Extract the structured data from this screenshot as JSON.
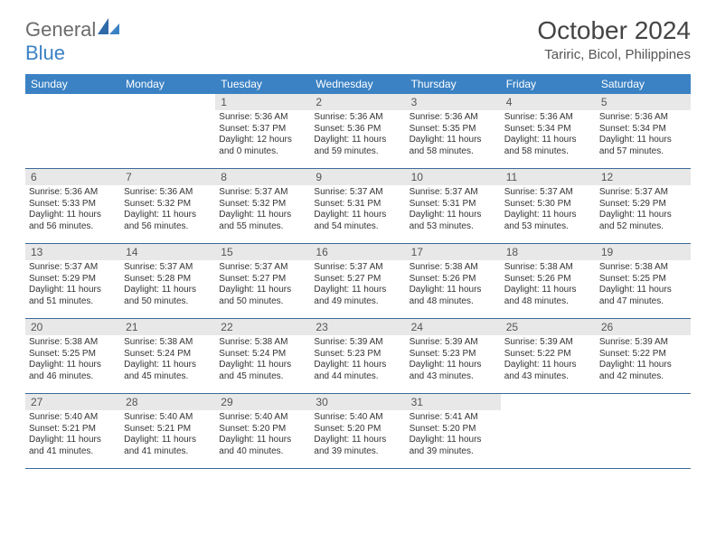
{
  "logo": {
    "textDark": "General",
    "textBlue": "Blue"
  },
  "header": {
    "title": "October 2024",
    "location": "Tariric, Bicol, Philippines"
  },
  "colors": {
    "headerBg": "#3b82c4",
    "headerText": "#ffffff",
    "dayNumBg": "#e8e8e8",
    "dayNumText": "#555555",
    "bodyText": "#333333",
    "rowBorder": "#3b6a9b",
    "logoGray": "#6b6b6b",
    "logoBlue": "#3b82c4"
  },
  "dayNames": [
    "Sunday",
    "Monday",
    "Tuesday",
    "Wednesday",
    "Thursday",
    "Friday",
    "Saturday"
  ],
  "weeks": [
    [
      {
        "empty": true
      },
      {
        "empty": true
      },
      {
        "num": "1",
        "sunrise": "Sunrise: 5:36 AM",
        "sunset": "Sunset: 5:37 PM",
        "daylight": "Daylight: 12 hours and 0 minutes."
      },
      {
        "num": "2",
        "sunrise": "Sunrise: 5:36 AM",
        "sunset": "Sunset: 5:36 PM",
        "daylight": "Daylight: 11 hours and 59 minutes."
      },
      {
        "num": "3",
        "sunrise": "Sunrise: 5:36 AM",
        "sunset": "Sunset: 5:35 PM",
        "daylight": "Daylight: 11 hours and 58 minutes."
      },
      {
        "num": "4",
        "sunrise": "Sunrise: 5:36 AM",
        "sunset": "Sunset: 5:34 PM",
        "daylight": "Daylight: 11 hours and 58 minutes."
      },
      {
        "num": "5",
        "sunrise": "Sunrise: 5:36 AM",
        "sunset": "Sunset: 5:34 PM",
        "daylight": "Daylight: 11 hours and 57 minutes."
      }
    ],
    [
      {
        "num": "6",
        "sunrise": "Sunrise: 5:36 AM",
        "sunset": "Sunset: 5:33 PM",
        "daylight": "Daylight: 11 hours and 56 minutes."
      },
      {
        "num": "7",
        "sunrise": "Sunrise: 5:36 AM",
        "sunset": "Sunset: 5:32 PM",
        "daylight": "Daylight: 11 hours and 56 minutes."
      },
      {
        "num": "8",
        "sunrise": "Sunrise: 5:37 AM",
        "sunset": "Sunset: 5:32 PM",
        "daylight": "Daylight: 11 hours and 55 minutes."
      },
      {
        "num": "9",
        "sunrise": "Sunrise: 5:37 AM",
        "sunset": "Sunset: 5:31 PM",
        "daylight": "Daylight: 11 hours and 54 minutes."
      },
      {
        "num": "10",
        "sunrise": "Sunrise: 5:37 AM",
        "sunset": "Sunset: 5:31 PM",
        "daylight": "Daylight: 11 hours and 53 minutes."
      },
      {
        "num": "11",
        "sunrise": "Sunrise: 5:37 AM",
        "sunset": "Sunset: 5:30 PM",
        "daylight": "Daylight: 11 hours and 53 minutes."
      },
      {
        "num": "12",
        "sunrise": "Sunrise: 5:37 AM",
        "sunset": "Sunset: 5:29 PM",
        "daylight": "Daylight: 11 hours and 52 minutes."
      }
    ],
    [
      {
        "num": "13",
        "sunrise": "Sunrise: 5:37 AM",
        "sunset": "Sunset: 5:29 PM",
        "daylight": "Daylight: 11 hours and 51 minutes."
      },
      {
        "num": "14",
        "sunrise": "Sunrise: 5:37 AM",
        "sunset": "Sunset: 5:28 PM",
        "daylight": "Daylight: 11 hours and 50 minutes."
      },
      {
        "num": "15",
        "sunrise": "Sunrise: 5:37 AM",
        "sunset": "Sunset: 5:27 PM",
        "daylight": "Daylight: 11 hours and 50 minutes."
      },
      {
        "num": "16",
        "sunrise": "Sunrise: 5:37 AM",
        "sunset": "Sunset: 5:27 PM",
        "daylight": "Daylight: 11 hours and 49 minutes."
      },
      {
        "num": "17",
        "sunrise": "Sunrise: 5:38 AM",
        "sunset": "Sunset: 5:26 PM",
        "daylight": "Daylight: 11 hours and 48 minutes."
      },
      {
        "num": "18",
        "sunrise": "Sunrise: 5:38 AM",
        "sunset": "Sunset: 5:26 PM",
        "daylight": "Daylight: 11 hours and 48 minutes."
      },
      {
        "num": "19",
        "sunrise": "Sunrise: 5:38 AM",
        "sunset": "Sunset: 5:25 PM",
        "daylight": "Daylight: 11 hours and 47 minutes."
      }
    ],
    [
      {
        "num": "20",
        "sunrise": "Sunrise: 5:38 AM",
        "sunset": "Sunset: 5:25 PM",
        "daylight": "Daylight: 11 hours and 46 minutes."
      },
      {
        "num": "21",
        "sunrise": "Sunrise: 5:38 AM",
        "sunset": "Sunset: 5:24 PM",
        "daylight": "Daylight: 11 hours and 45 minutes."
      },
      {
        "num": "22",
        "sunrise": "Sunrise: 5:38 AM",
        "sunset": "Sunset: 5:24 PM",
        "daylight": "Daylight: 11 hours and 45 minutes."
      },
      {
        "num": "23",
        "sunrise": "Sunrise: 5:39 AM",
        "sunset": "Sunset: 5:23 PM",
        "daylight": "Daylight: 11 hours and 44 minutes."
      },
      {
        "num": "24",
        "sunrise": "Sunrise: 5:39 AM",
        "sunset": "Sunset: 5:23 PM",
        "daylight": "Daylight: 11 hours and 43 minutes."
      },
      {
        "num": "25",
        "sunrise": "Sunrise: 5:39 AM",
        "sunset": "Sunset: 5:22 PM",
        "daylight": "Daylight: 11 hours and 43 minutes."
      },
      {
        "num": "26",
        "sunrise": "Sunrise: 5:39 AM",
        "sunset": "Sunset: 5:22 PM",
        "daylight": "Daylight: 11 hours and 42 minutes."
      }
    ],
    [
      {
        "num": "27",
        "sunrise": "Sunrise: 5:40 AM",
        "sunset": "Sunset: 5:21 PM",
        "daylight": "Daylight: 11 hours and 41 minutes."
      },
      {
        "num": "28",
        "sunrise": "Sunrise: 5:40 AM",
        "sunset": "Sunset: 5:21 PM",
        "daylight": "Daylight: 11 hours and 41 minutes."
      },
      {
        "num": "29",
        "sunrise": "Sunrise: 5:40 AM",
        "sunset": "Sunset: 5:20 PM",
        "daylight": "Daylight: 11 hours and 40 minutes."
      },
      {
        "num": "30",
        "sunrise": "Sunrise: 5:40 AM",
        "sunset": "Sunset: 5:20 PM",
        "daylight": "Daylight: 11 hours and 39 minutes."
      },
      {
        "num": "31",
        "sunrise": "Sunrise: 5:41 AM",
        "sunset": "Sunset: 5:20 PM",
        "daylight": "Daylight: 11 hours and 39 minutes."
      },
      {
        "empty": true
      },
      {
        "empty": true
      }
    ]
  ]
}
